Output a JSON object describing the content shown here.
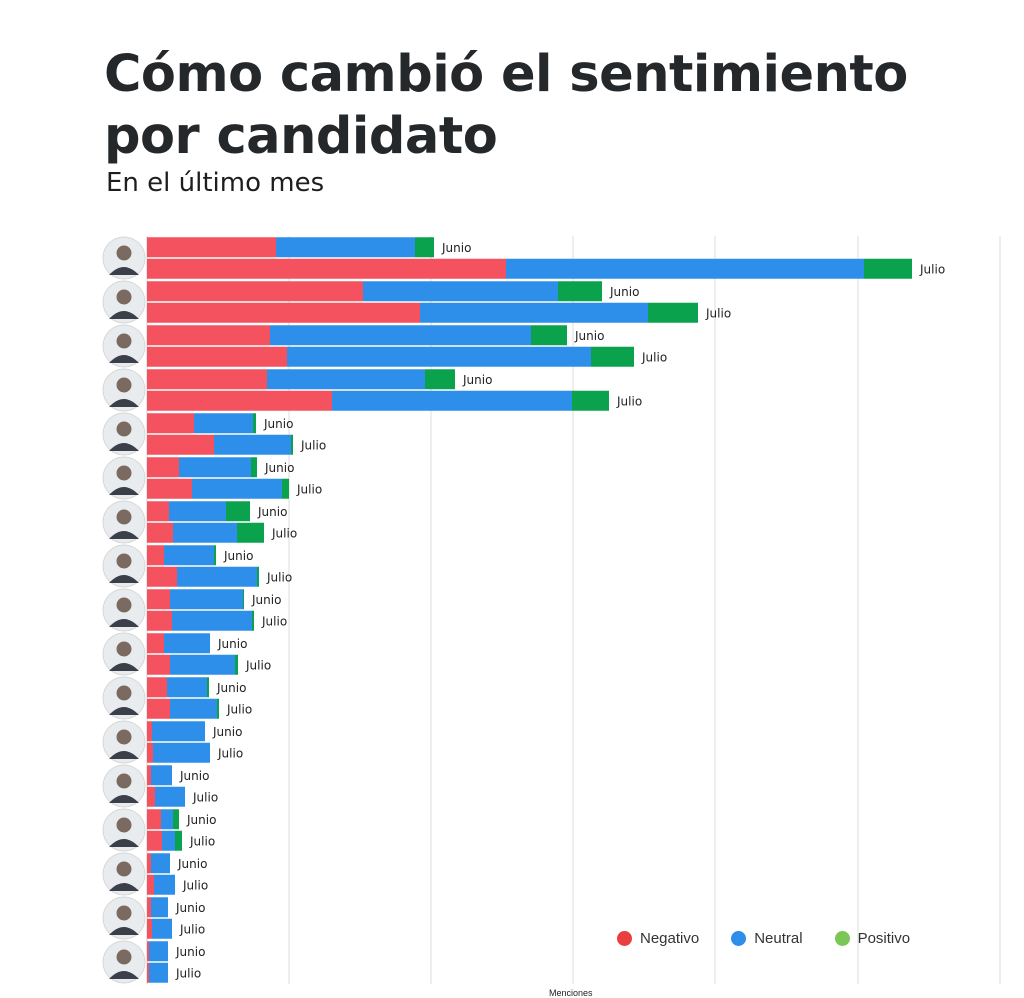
{
  "header": {
    "title": "Cómo cambió el sentimiento por candidato",
    "subtitle": "En el último mes"
  },
  "colors": {
    "negative": "#f4525f",
    "neutral": "#2d8fea",
    "positive": "#0aa24c",
    "legend_positive": "#7cc655",
    "grid": "#dcdcdc"
  },
  "legend": {
    "negative": "Negativo",
    "neutral": "Neutral",
    "positive": "Positivo"
  },
  "chart_data": {
    "type": "bar",
    "orientation": "horizontal",
    "stacked": true,
    "xlabel": "Menciones",
    "ylabel": "",
    "grid": true,
    "legend_position": "bottom-right",
    "series_names": [
      "Negativo",
      "Neutral",
      "Positivo"
    ],
    "candidates": [
      {
        "avatar": "candidate-1",
        "rows": [
          {
            "label": "Junio",
            "values": [
              129,
              139,
              19
            ]
          },
          {
            "label": "Julio",
            "values": [
              359,
              358,
              48
            ]
          }
        ]
      },
      {
        "avatar": "candidate-2",
        "rows": [
          {
            "label": "Junio",
            "values": [
              216,
              195,
              44
            ]
          },
          {
            "label": "Julio",
            "values": [
              273,
              228,
              50
            ]
          }
        ]
      },
      {
        "avatar": "candidate-3",
        "rows": [
          {
            "label": "Junio",
            "values": [
              123,
              261,
              36
            ]
          },
          {
            "label": "Julio",
            "values": [
              140,
              304,
              43
            ]
          }
        ]
      },
      {
        "avatar": "candidate-4",
        "rows": [
          {
            "label": "Junio",
            "values": [
              120,
              158,
              30
            ]
          },
          {
            "label": "Julio",
            "values": [
              185,
              240,
              37
            ]
          }
        ]
      },
      {
        "avatar": "candidate-5",
        "rows": [
          {
            "label": "Junio",
            "values": [
              47,
              59,
              3
            ]
          },
          {
            "label": "Julio",
            "values": [
              67,
              77,
              2
            ]
          }
        ]
      },
      {
        "avatar": "candidate-6",
        "rows": [
          {
            "label": "Junio",
            "values": [
              32,
              72,
              6
            ]
          },
          {
            "label": "Julio",
            "values": [
              45,
              90,
              7
            ]
          }
        ]
      },
      {
        "avatar": "candidate-7",
        "rows": [
          {
            "label": "Junio",
            "values": [
              22,
              57,
              24
            ]
          },
          {
            "label": "Julio",
            "values": [
              26,
              64,
              27
            ]
          }
        ]
      },
      {
        "avatar": "candidate-8",
        "rows": [
          {
            "label": "Junio",
            "values": [
              17,
              50,
              2
            ]
          },
          {
            "label": "Julio",
            "values": [
              30,
              80,
              2
            ]
          }
        ]
      },
      {
        "avatar": "candidate-9",
        "rows": [
          {
            "label": "Junio",
            "values": [
              23,
              73,
              1
            ]
          },
          {
            "label": "Julio",
            "values": [
              25,
              80,
              2
            ]
          }
        ]
      },
      {
        "avatar": "candidate-10",
        "rows": [
          {
            "label": "Junio",
            "values": [
              17,
              46,
              0
            ]
          },
          {
            "label": "Julio",
            "values": [
              23,
              65,
              3
            ]
          }
        ]
      },
      {
        "avatar": "candidate-11",
        "rows": [
          {
            "label": "Junio",
            "values": [
              20,
              40,
              2
            ]
          },
          {
            "label": "Julio",
            "values": [
              23,
              47,
              2
            ]
          }
        ]
      },
      {
        "avatar": "candidate-12",
        "rows": [
          {
            "label": "Junio",
            "values": [
              5,
              53,
              0
            ]
          },
          {
            "label": "Julio",
            "values": [
              6,
              57,
              0
            ]
          }
        ]
      },
      {
        "avatar": "candidate-13",
        "rows": [
          {
            "label": "Junio",
            "values": [
              4,
              21,
              0
            ]
          },
          {
            "label": "Julio",
            "values": [
              8,
              30,
              0
            ]
          }
        ]
      },
      {
        "avatar": "candidate-14",
        "rows": [
          {
            "label": "Junio",
            "values": [
              14,
              12,
              6
            ]
          },
          {
            "label": "Julio",
            "values": [
              15,
              13,
              7
            ]
          }
        ]
      },
      {
        "avatar": "candidate-15",
        "rows": [
          {
            "label": "Junio",
            "values": [
              4,
              19,
              0
            ]
          },
          {
            "label": "Julio",
            "values": [
              7,
              21,
              0
            ]
          }
        ]
      },
      {
        "avatar": "candidate-16",
        "rows": [
          {
            "label": "Junio",
            "values": [
              4,
              17,
              0
            ]
          },
          {
            "label": "Julio",
            "values": [
              5,
              20,
              0
            ]
          }
        ]
      },
      {
        "avatar": "candidate-17",
        "rows": [
          {
            "label": "Junio",
            "values": [
              2,
              19,
              0
            ]
          },
          {
            "label": "Julio",
            "values": [
              2,
              19,
              0
            ]
          }
        ]
      }
    ]
  }
}
